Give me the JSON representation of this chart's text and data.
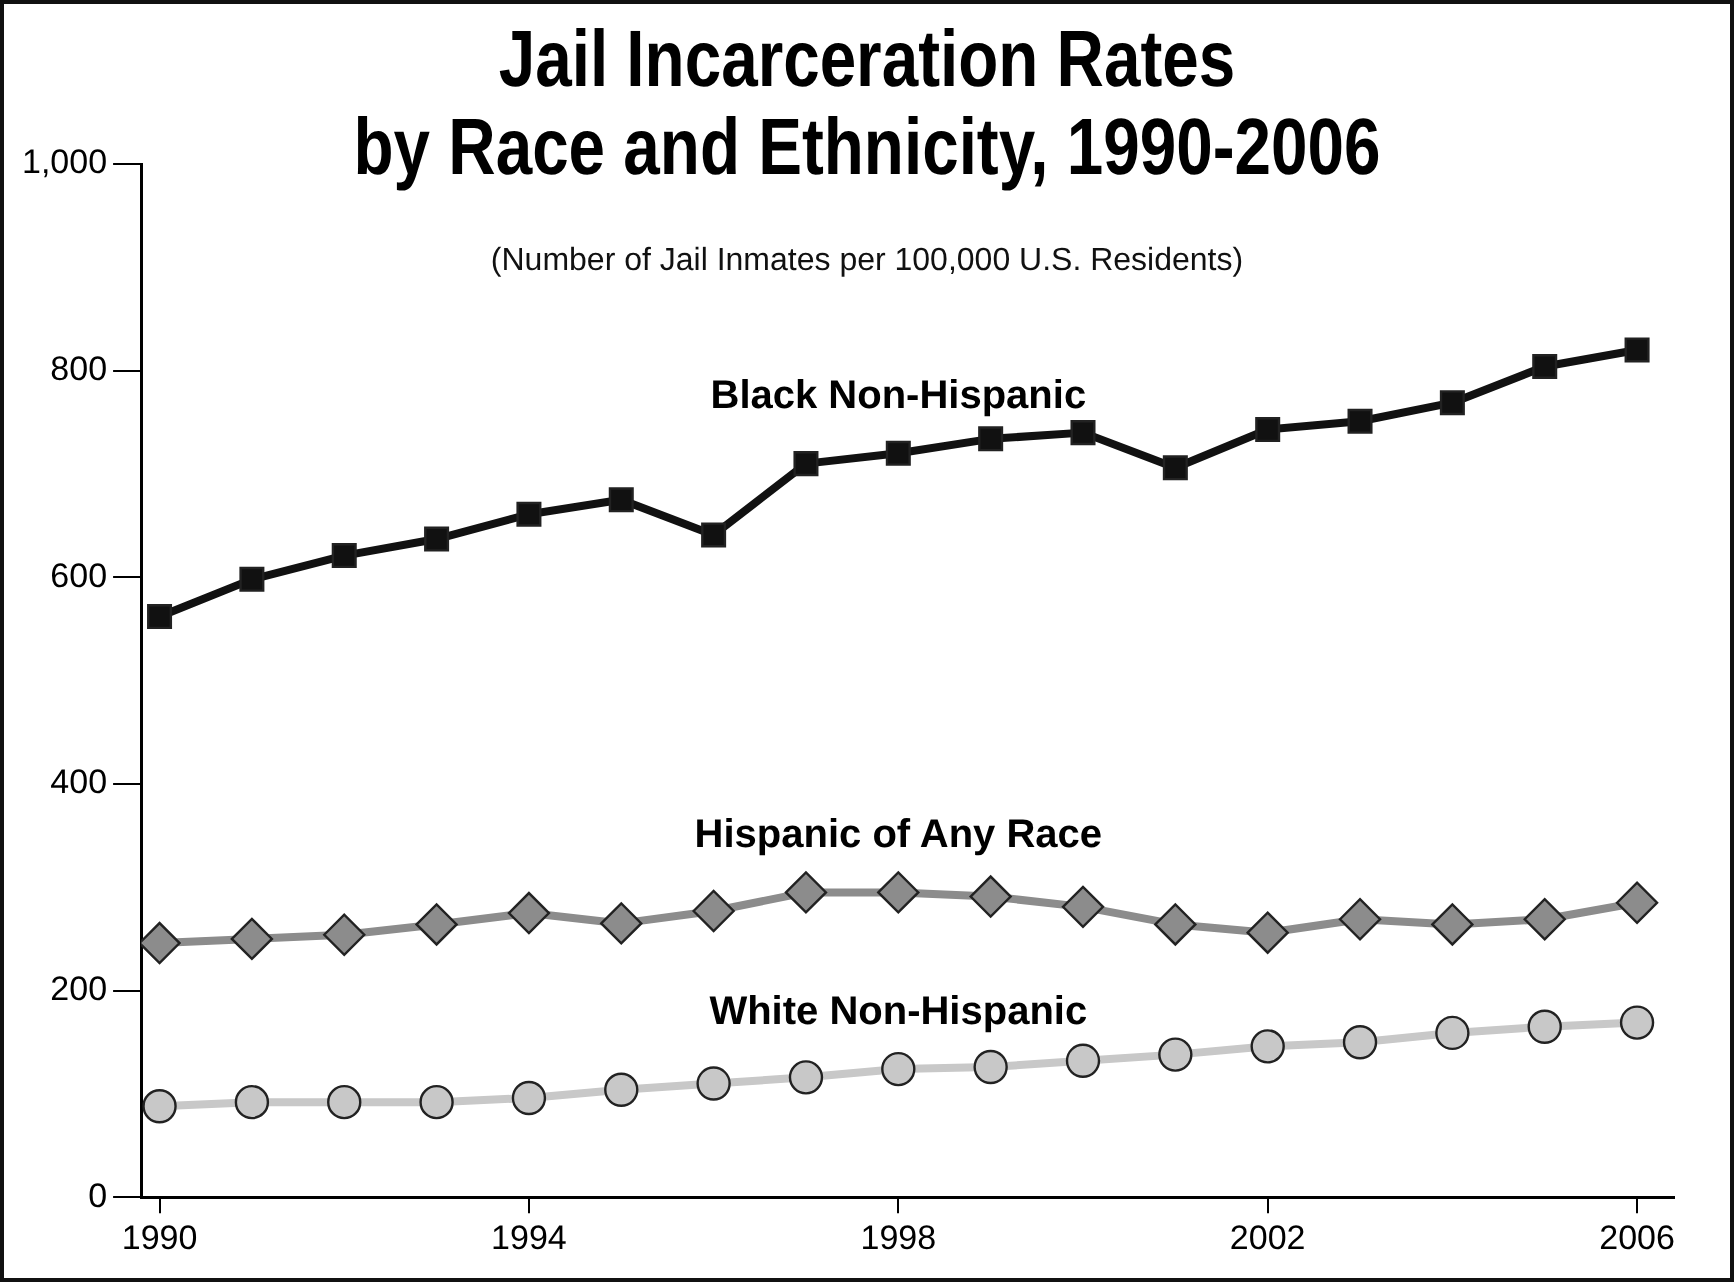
{
  "chart_data": {
    "type": "line",
    "title": "Jail Incarceration Rates\nby Race and Ethnicity, 1990-2006",
    "subtitle": "(Number of Jail Inmates per 100,000 U.S. Residents)",
    "x": [
      1990,
      1991,
      1992,
      1993,
      1994,
      1995,
      1996,
      1997,
      1998,
      1999,
      2000,
      2001,
      2002,
      2003,
      2004,
      2005,
      2006
    ],
    "series": [
      {
        "name": "Black Non-Hispanic",
        "color": "#111111",
        "marker": "square",
        "values": [
          562,
          598,
          621,
          637,
          661,
          675,
          641,
          710,
          720,
          734,
          740,
          706,
          743,
          751,
          769,
          804,
          820
        ]
      },
      {
        "name": "Hispanic of Any Race",
        "color": "#8c8c8c",
        "marker": "diamond",
        "values": [
          246,
          250,
          254,
          264,
          275,
          265,
          277,
          295,
          295,
          291,
          281,
          264,
          256,
          269,
          264,
          269,
          285
        ]
      },
      {
        "name": "White Non-Hispanic",
        "color": "#c8c8c8",
        "marker": "circle",
        "values": [
          88,
          92,
          92,
          92,
          96,
          104,
          110,
          116,
          124,
          126,
          132,
          138,
          146,
          150,
          159,
          165,
          169
        ]
      }
    ],
    "xlim": [
      1989.8,
      2006.4
    ],
    "xticks": [
      1990,
      1994,
      1998,
      2002,
      2006
    ],
    "ylim": [
      0,
      1000
    ],
    "yticks": [
      0,
      200,
      400,
      600,
      800,
      {
        "value": 1000,
        "label": "1,000"
      }
    ],
    "grid": false,
    "legend": false
  }
}
